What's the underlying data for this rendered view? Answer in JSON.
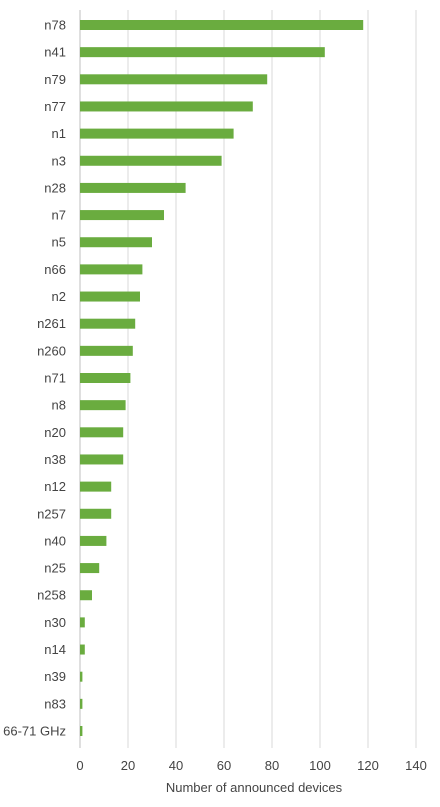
{
  "chart_data": {
    "type": "bar",
    "orientation": "horizontal",
    "categories": [
      "n78",
      "n41",
      "n79",
      "n77",
      "n1",
      "n3",
      "n28",
      "n7",
      "n5",
      "n66",
      "n2",
      "n261",
      "n260",
      "n71",
      "n8",
      "n20",
      "n38",
      "n12",
      "n257",
      "n40",
      "n25",
      "n258",
      "n30",
      "n14",
      "n39",
      "n83",
      "66-71 GHz"
    ],
    "values": [
      118,
      102,
      78,
      72,
      64,
      59,
      44,
      35,
      30,
      26,
      25,
      23,
      22,
      21,
      19,
      18,
      18,
      13,
      13,
      11,
      8,
      5,
      2,
      2,
      1,
      1,
      1
    ],
    "title": "",
    "xlabel": "Number of announced devices",
    "ylabel": "",
    "xlim": [
      0,
      140
    ],
    "xticks": [
      0,
      20,
      40,
      60,
      80,
      100,
      120,
      140
    ],
    "grid": "vertical",
    "bar_color": "#6aac3f"
  }
}
